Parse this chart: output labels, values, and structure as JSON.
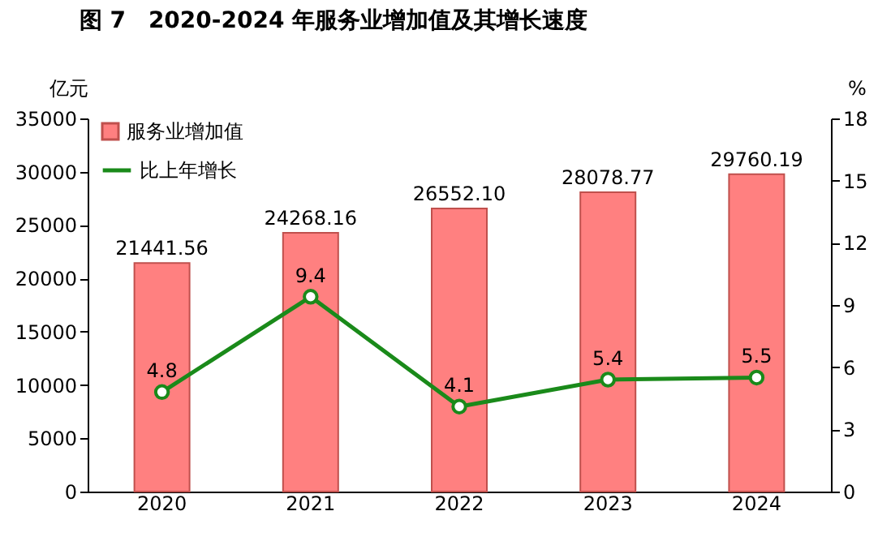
{
  "chart_data": {
    "type": "bar",
    "title": "图 7　2020-2024 年服务业增加值及其增长速度",
    "ylabel": "亿元",
    "y2label": "%",
    "categories": [
      "2020",
      "2021",
      "2022",
      "2023",
      "2024"
    ],
    "series": [
      {
        "name": "服务业增加值",
        "color": "#ff8080",
        "values": [
          21441.56,
          24268.16,
          26552.1,
          28078.77,
          29760.19
        ],
        "value_labels": [
          "21441.56",
          "24268.16",
          "26552.10",
          "28078.77",
          "29760.19"
        ]
      },
      {
        "name": "比上年增长",
        "type": "line",
        "axis": "y2",
        "color": "#1a8a1a",
        "values": [
          4.8,
          9.4,
          4.1,
          5.4,
          5.5
        ],
        "value_labels": [
          "4.8",
          "9.4",
          "4.1",
          "5.4",
          "5.5"
        ]
      }
    ],
    "ylim": [
      0,
      35000
    ],
    "yticks": [
      0,
      5000,
      10000,
      15000,
      20000,
      25000,
      30000,
      35000
    ],
    "y2lim": [
      0,
      18
    ],
    "y2ticks": [
      0,
      3,
      6,
      9,
      12,
      15,
      18
    ],
    "legend": "top left",
    "marker": "circle",
    "line_style": "solid",
    "grid": false
  }
}
